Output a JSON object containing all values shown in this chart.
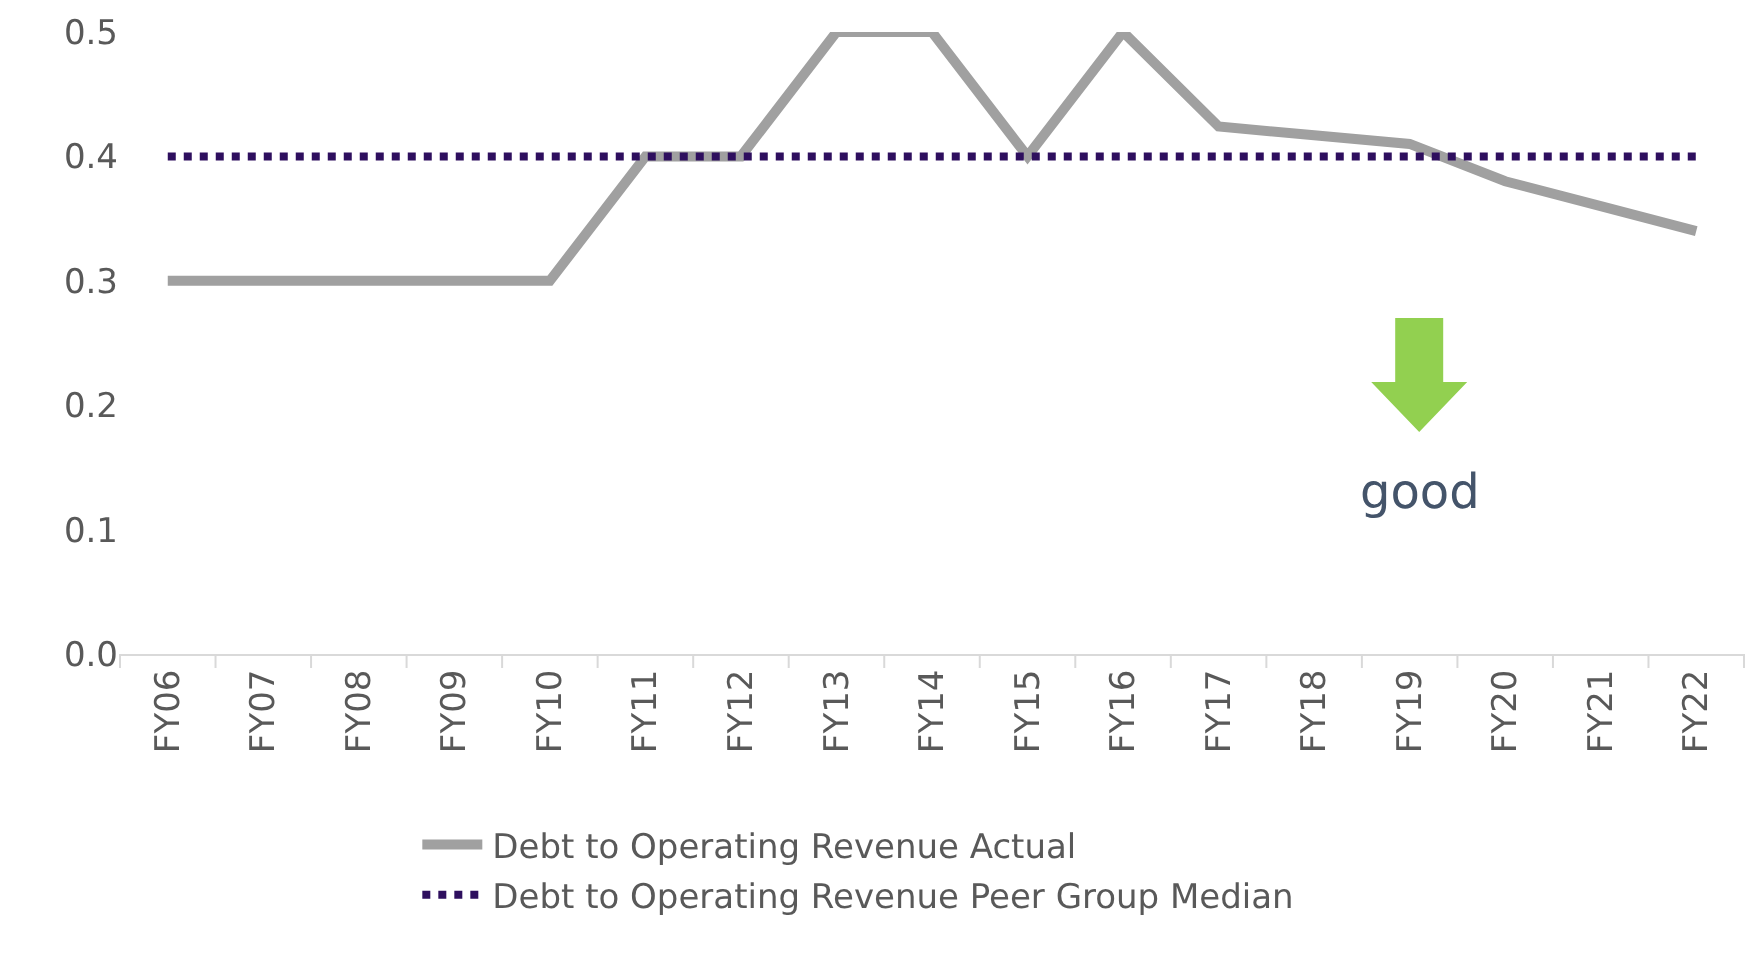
{
  "chart_data": {
    "type": "line",
    "categories": [
      "FY06",
      "FY07",
      "FY08",
      "FY09",
      "FY10",
      "FY11",
      "FY12",
      "FY13",
      "FY14",
      "FY15",
      "FY16",
      "FY17",
      "FY18",
      "FY19",
      "FY20",
      "FY21",
      "FY22"
    ],
    "series": [
      {
        "name": "Debt to Operating Revenue Actual",
        "color": "#a0a0a0",
        "line_style": "solid",
        "values": [
          0.3,
          0.3,
          0.3,
          0.3,
          0.3,
          0.4,
          0.4,
          0.5,
          0.5,
          0.4,
          0.5,
          0.424,
          0.417,
          0.41,
          0.38,
          0.36,
          0.34
        ]
      },
      {
        "name": "Debt to Operating Revenue Peer Group Median",
        "color": "#2e0f5e",
        "line_style": "dotted",
        "values": [
          0.4,
          0.4,
          0.4,
          0.4,
          0.4,
          0.4,
          0.4,
          0.4,
          0.4,
          0.4,
          0.4,
          0.4,
          0.4,
          0.4,
          0.4,
          0.4,
          0.4
        ]
      }
    ],
    "ylim": [
      0,
      0.5
    ],
    "yticks": [
      {
        "value": 0,
        "label": "0.0"
      },
      0.1,
      0.2,
      0.3,
      0.4,
      0.5
    ],
    "grid": false,
    "legend": "bottom",
    "marker": "none",
    "annotations": [
      "good"
    ]
  }
}
